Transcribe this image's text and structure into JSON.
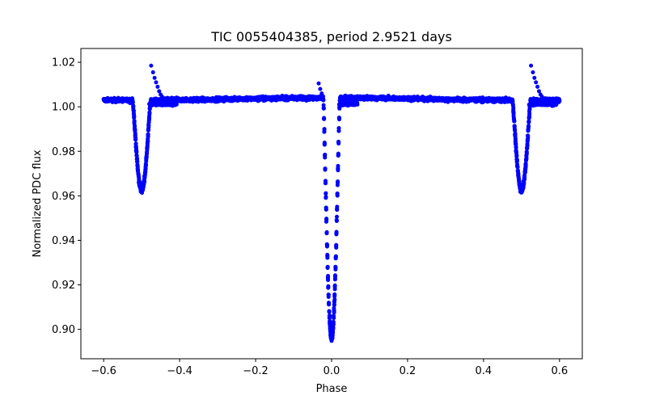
{
  "chart_data": {
    "type": "scatter",
    "title": "TIC 0055404385, period 2.9521 days",
    "xlabel": "Phase",
    "ylabel": "Normalized PDC flux",
    "xlim": [
      -0.66,
      0.66
    ],
    "ylim": [
      0.8868,
      1.0262
    ],
    "grid": false,
    "marker_color": "#0000ff",
    "x_ticks": [
      -0.6,
      -0.4,
      -0.2,
      0.0,
      0.2,
      0.4,
      0.6
    ],
    "x_tick_labels": [
      "−0.6",
      "−0.4",
      "−0.2",
      "0.0",
      "0.2",
      "0.4",
      "0.6"
    ],
    "y_ticks": [
      0.9,
      0.92,
      0.94,
      0.96,
      0.98,
      1.0,
      1.02
    ],
    "y_tick_labels": [
      "0.90",
      "0.92",
      "0.94",
      "0.96",
      "0.98",
      "1.00",
      "1.02"
    ],
    "model": {
      "baseline": 1.0035,
      "primary_eclipse": {
        "phase": 0.0,
        "min_flux": 0.895,
        "half_width": 0.022
      },
      "secondary_eclipse": {
        "phase": 0.5,
        "min_flux": 0.963,
        "half_width": 0.024
      },
      "phase_range": [
        -0.6,
        0.6
      ]
    },
    "outlier_points": [
      {
        "x": -0.475,
        "y": 1.0185
      },
      {
        "x": -0.47,
        "y": 1.0155
      },
      {
        "x": -0.466,
        "y": 1.013
      },
      {
        "x": -0.462,
        "y": 1.011
      },
      {
        "x": -0.458,
        "y": 1.009
      },
      {
        "x": -0.454,
        "y": 1.007
      },
      {
        "x": -0.45,
        "y": 1.0055
      },
      {
        "x": -0.446,
        "y": 1.0045
      },
      {
        "x": 0.525,
        "y": 1.0185
      },
      {
        "x": 0.53,
        "y": 1.0155
      },
      {
        "x": 0.534,
        "y": 1.013
      },
      {
        "x": 0.538,
        "y": 1.011
      },
      {
        "x": 0.542,
        "y": 1.009
      },
      {
        "x": 0.546,
        "y": 1.007
      },
      {
        "x": 0.55,
        "y": 1.0055
      },
      {
        "x": 0.554,
        "y": 1.0045
      },
      {
        "x": -0.034,
        "y": 1.0105
      },
      {
        "x": -0.03,
        "y": 1.008
      },
      {
        "x": -0.026,
        "y": 1.006
      }
    ]
  }
}
